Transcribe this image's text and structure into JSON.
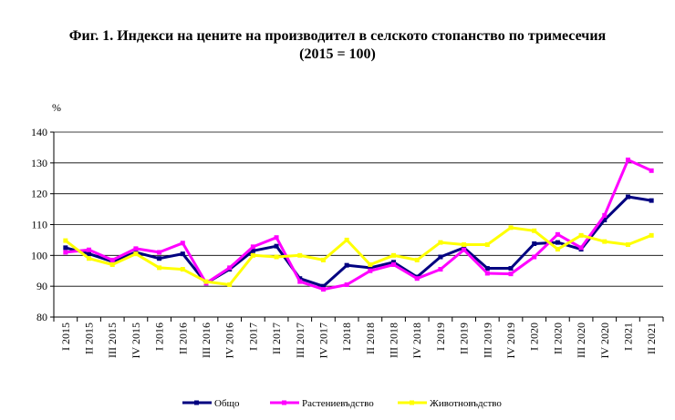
{
  "chart_data": {
    "type": "line",
    "title_line1": "Фиг. 1. Индекси на цените на производител в селското стопанство по тримесечия",
    "title_line2": "(2015 = 100)",
    "ylabel": "%",
    "ylim": [
      80,
      140
    ],
    "yticks": [
      80,
      90,
      100,
      110,
      120,
      130,
      140
    ],
    "categories": [
      "I 2015",
      "II 2015",
      "III 2015",
      "IV 2015",
      "I 2016",
      "II 2016",
      "III 2016",
      "IV 2016",
      "I 2017",
      "II 2017",
      "III 2017",
      "IV 2017",
      "I 2018",
      "II 2018",
      "III 2018",
      "IV 2018",
      "I 2019",
      "II 2019",
      "III 2019",
      "IV 2019",
      "I 2020",
      "II 2020",
      "III 2020",
      "IV 2020",
      "I 2021",
      "II 2021"
    ],
    "series": [
      {
        "name": "Общо",
        "color": "#000080",
        "values": [
          102.5,
          100.5,
          98.0,
          101.0,
          99.0,
          100.5,
          91.0,
          95.5,
          101.5,
          103.0,
          92.5,
          90.0,
          96.8,
          96.0,
          97.8,
          93.0,
          99.5,
          102.5,
          95.8,
          95.8,
          103.8,
          104.2,
          102.0,
          111.5,
          119.0,
          117.8
        ]
      },
      {
        "name": "Растениевъдство",
        "color": "#FF00FF",
        "values": [
          101.0,
          101.8,
          98.5,
          102.2,
          101.0,
          104.0,
          91.0,
          96.0,
          102.8,
          105.8,
          91.5,
          89.0,
          90.5,
          95.0,
          97.0,
          92.5,
          95.5,
          101.8,
          94.2,
          94.0,
          99.5,
          106.8,
          102.5,
          113.0,
          131.0,
          127.5
        ]
      },
      {
        "name": "Животновъдство",
        "color": "#FFFF00",
        "values": [
          104.8,
          99.0,
          97.0,
          100.5,
          96.0,
          95.5,
          91.5,
          90.5,
          100.0,
          99.5,
          100.0,
          98.5,
          105.0,
          97.0,
          100.0,
          98.5,
          104.2,
          103.5,
          103.5,
          109.0,
          108.0,
          102.0,
          106.5,
          104.5,
          103.5,
          106.5
        ]
      }
    ]
  }
}
